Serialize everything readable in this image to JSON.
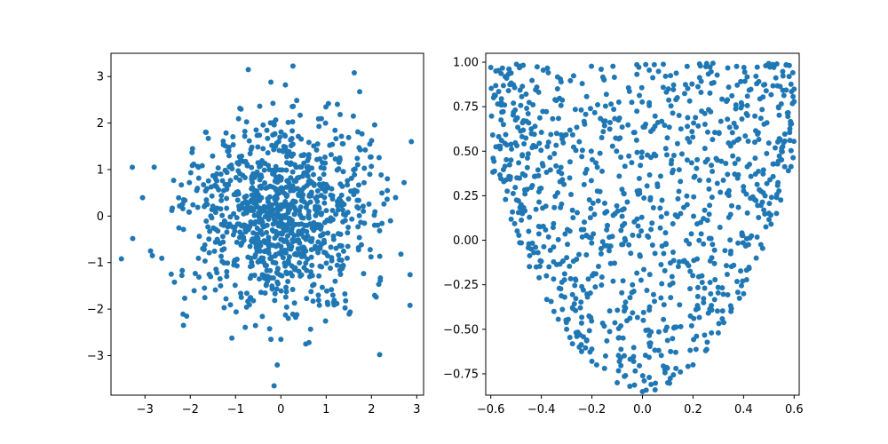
{
  "chart_data": [
    {
      "type": "scatter",
      "title": "",
      "xlabel": "",
      "ylabel": "",
      "xlim": [
        -3.75,
        3.15
      ],
      "ylim": [
        -3.85,
        3.5
      ],
      "xticks": [
        -3,
        -2,
        -1,
        0,
        1,
        2,
        3
      ],
      "yticks": [
        -3,
        -2,
        -1,
        0,
        1,
        2,
        3
      ],
      "xtick_labels": [
        "−3",
        "−2",
        "−1",
        "0",
        "1",
        "2",
        "3"
      ],
      "ytick_labels": [
        "−3",
        "−2",
        "−1",
        "0",
        "1",
        "2",
        "3"
      ],
      "grid": false,
      "legend": false,
      "marker_color": "#1f77b4",
      "point_count": 1000,
      "distribution": "bivariate normal, mean 0, sd 1",
      "series": [
        {
          "x": [
            -3.52,
            -3.28,
            -2.42,
            -2.35,
            -2.15,
            -2.08,
            -2.02,
            -1.95,
            -1.82,
            -1.65,
            2.85,
            2.88,
            2.72,
            2.65,
            2.18,
            1.62,
            1.6,
            -0.72,
            -0.22,
            -0.15,
            -0.08,
            0.0,
            0.55,
            0.62,
            -0.22,
            0.1,
            1.05,
            1.3,
            2.35,
            2.42
          ],
          "y": [
            -0.92,
            1.05,
            -1.25,
            -1.42,
            -2.35,
            -2.15,
            0.72,
            1.45,
            1.05,
            1.8,
            -1.92,
            1.6,
            0.72,
            -0.82,
            -2.98,
            3.08,
            2.15,
            3.15,
            2.88,
            -3.65,
            -3.2,
            -2.65,
            -2.75,
            -2.72,
            -2.65,
            2.82,
            2.42,
            1.25,
            0.8,
            -0.1
          ]
        }
      ]
    },
    {
      "type": "scatter",
      "title": "",
      "xlabel": "",
      "ylabel": "",
      "xlim": [
        -0.62,
        0.62
      ],
      "ylim": [
        -0.87,
        1.05
      ],
      "xticks": [
        -0.6,
        -0.4,
        -0.2,
        0.0,
        0.2,
        0.4,
        0.6
      ],
      "yticks": [
        -0.75,
        -0.5,
        -0.25,
        0.0,
        0.25,
        0.5,
        0.75,
        1.0
      ],
      "xtick_labels": [
        "−0.6",
        "−0.4",
        "−0.2",
        "0.0",
        "0.2",
        "0.4",
        "0.6"
      ],
      "ytick_labels": [
        "−0.75",
        "−0.50",
        "−0.25",
        "0.00",
        "0.25",
        "0.50",
        "0.75",
        "1.00"
      ],
      "grid": false,
      "legend": false,
      "marker_color": "#1f77b4",
      "point_count": 1000,
      "distribution": "uniform x in [-0.6, 0.6]; y uniform between 3.5*x^2 - 0.85 and 1.0",
      "series": [
        {
          "x": [
            -0.6,
            -0.58,
            -0.55,
            -0.52,
            -0.48,
            -0.45,
            -0.42,
            -0.38,
            -0.35,
            -0.3,
            -0.25,
            -0.2,
            -0.15,
            -0.1,
            -0.05,
            0.0,
            0.05,
            0.1,
            0.15,
            0.2,
            0.25,
            0.3,
            0.35,
            0.4,
            0.45,
            0.5,
            0.55,
            0.58
          ],
          "y": [
            0.97,
            0.95,
            0.65,
            0.45,
            0.2,
            0.05,
            -0.15,
            -0.2,
            -0.4,
            -0.5,
            -0.6,
            -0.68,
            -0.72,
            -0.8,
            -0.82,
            -0.85,
            -0.84,
            -0.8,
            -0.74,
            -0.7,
            -0.62,
            -0.52,
            -0.4,
            -0.3,
            -0.1,
            0.15,
            0.5,
            0.92
          ]
        }
      ]
    }
  ]
}
